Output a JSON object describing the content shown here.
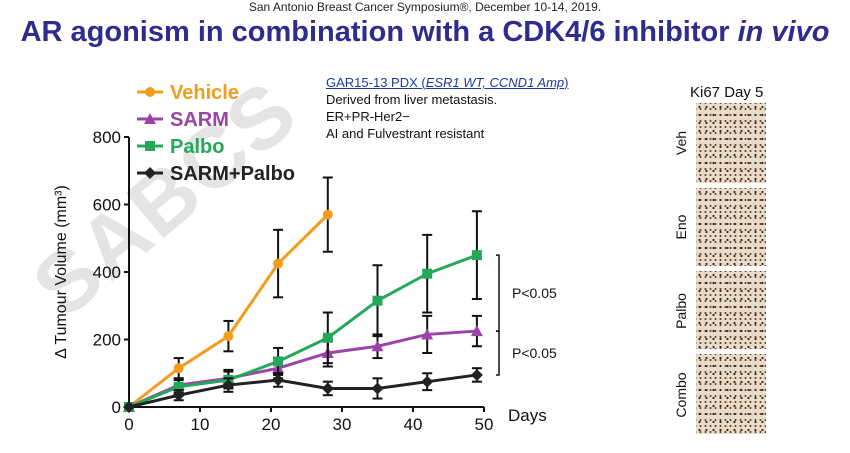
{
  "meeting": "San Antonio Breast Cancer Symposium®, December 10-14, 2019.",
  "title_main": "AR agonism in combination with a CDK4/6 inhibitor ",
  "title_italic": "in vivo",
  "watermark": "SABCS",
  "model": {
    "link_prefix": "GAR15-13 PDX (",
    "link_italic": "ESR1 WT, CCND1 Amp",
    "link_suffix": ")",
    "lines": [
      "Derived from liver metastasis.",
      "ER+PR-Her2−",
      "AI and Fulvestrant resistant"
    ]
  },
  "ki67": {
    "title": "Ki67 Day 5",
    "panels": [
      "Veh",
      "Eno",
      "Palbo",
      "Combo"
    ]
  },
  "colors": {
    "title": "#2e2c8c",
    "vehicle": "#f39c1e",
    "sarm": "#9b44a8",
    "palbo": "#24a85a",
    "combo": "#222222"
  },
  "chart_data": {
    "type": "line",
    "ylabel": "Δ Tumour Volume (mm³)",
    "xlabel": "Days",
    "xlim": [
      0,
      50
    ],
    "ylim": [
      0,
      800
    ],
    "xticks": [
      0,
      10,
      20,
      30,
      40,
      50
    ],
    "yticks": [
      0,
      200,
      400,
      600,
      800
    ],
    "series": [
      {
        "name": "Vehicle",
        "marker": "circle",
        "color": "#f39c1e",
        "x": [
          0,
          7,
          14,
          21,
          28
        ],
        "y": [
          0,
          115,
          210,
          425,
          570
        ],
        "err": [
          0,
          30,
          45,
          100,
          110
        ]
      },
      {
        "name": "SARM",
        "marker": "triangle",
        "color": "#9b44a8",
        "x": [
          0,
          7,
          14,
          21,
          28,
          35,
          42,
          49
        ],
        "y": [
          0,
          65,
          85,
          115,
          160,
          180,
          215,
          225
        ],
        "err": [
          0,
          20,
          25,
          30,
          40,
          35,
          55,
          45
        ]
      },
      {
        "name": "Palbo",
        "marker": "square",
        "color": "#24a85a",
        "x": [
          0,
          7,
          14,
          21,
          28,
          35,
          42,
          49
        ],
        "y": [
          0,
          60,
          80,
          135,
          205,
          315,
          395,
          450
        ],
        "err": [
          0,
          20,
          25,
          40,
          75,
          105,
          115,
          130
        ]
      },
      {
        "name": "SARM+Palbo",
        "marker": "diamond",
        "color": "#222222",
        "x": [
          0,
          7,
          14,
          21,
          28,
          35,
          42,
          49
        ],
        "y": [
          0,
          35,
          65,
          80,
          55,
          55,
          75,
          95
        ],
        "err": [
          0,
          15,
          20,
          20,
          20,
          30,
          25,
          20
        ]
      }
    ],
    "annotations": [
      {
        "text": "P<0.05",
        "from": 450,
        "to": 225
      },
      {
        "text": "P<0.05",
        "from": 225,
        "to": 95
      }
    ]
  }
}
